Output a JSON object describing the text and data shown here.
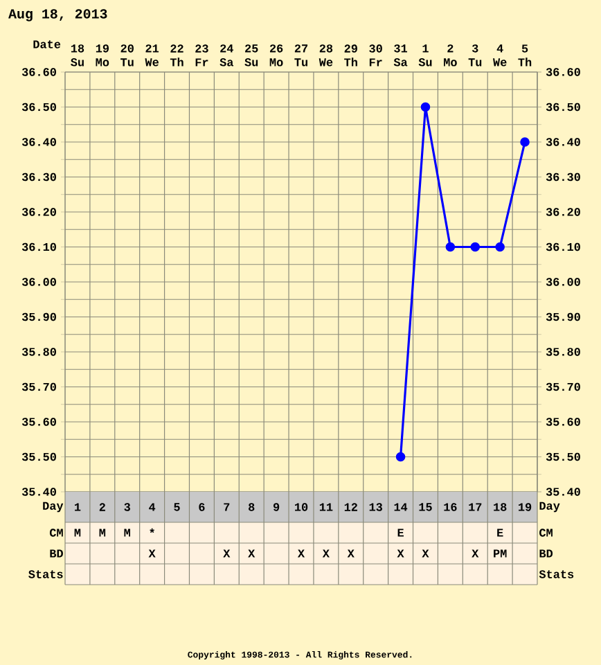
{
  "chart_data": {
    "type": "line",
    "title": "Aug 18, 2013",
    "xlabel": "Date",
    "x2label": "Day",
    "categories": [
      "18 Su",
      "19 Mo",
      "20 Tu",
      "21 We",
      "22 Th",
      "23 Fr",
      "24 Sa",
      "25 Su",
      "26 Mo",
      "27 Tu",
      "28 We",
      "29 Th",
      "30 Fr",
      "31 Sa",
      "1 Su",
      "2 Mo",
      "3 Tu",
      "4 We",
      "5 Th"
    ],
    "values": [
      null,
      null,
      null,
      null,
      null,
      null,
      null,
      null,
      null,
      null,
      null,
      null,
      null,
      35.5,
      36.5,
      36.1,
      36.1,
      36.1,
      36.4
    ],
    "color": "#0000ff",
    "marker": "circle",
    "grid": true,
    "ylim": [
      35.4,
      36.6
    ],
    "yticks": [
      {
        "value": 35.4,
        "label": "35.40"
      },
      {
        "value": 35.45,
        "label": null
      },
      {
        "value": 35.5,
        "label": "35.50"
      },
      {
        "value": 35.55,
        "label": null
      },
      {
        "value": 35.6,
        "label": "35.60"
      },
      {
        "value": 35.65,
        "label": null
      },
      {
        "value": 35.7,
        "label": "35.70"
      },
      {
        "value": 35.75,
        "label": null
      },
      {
        "value": 35.8,
        "label": "35.80"
      },
      {
        "value": 35.85,
        "label": null
      },
      {
        "value": 35.9,
        "label": "35.90"
      },
      {
        "value": 35.95,
        "label": null
      },
      {
        "value": 36.0,
        "label": "36.00"
      },
      {
        "value": 36.05,
        "label": null
      },
      {
        "value": 36.1,
        "label": "36.10"
      },
      {
        "value": 36.15,
        "label": null
      },
      {
        "value": 36.2,
        "label": "36.20"
      },
      {
        "value": 36.25,
        "label": null
      },
      {
        "value": 36.3,
        "label": "36.30"
      },
      {
        "value": 36.35,
        "label": null
      },
      {
        "value": 36.4,
        "label": "36.40"
      },
      {
        "value": 36.45,
        "label": null
      },
      {
        "value": 36.5,
        "label": "36.50"
      },
      {
        "value": 36.55,
        "label": null
      },
      {
        "value": 36.6,
        "label": "36.60"
      }
    ],
    "y2lim": [
      35.4,
      36.6
    ],
    "y2ticks": [
      {
        "value": 35.4,
        "label": "35.40"
      },
      {
        "value": 35.5,
        "label": "35.50"
      },
      {
        "value": 35.6,
        "label": "35.60"
      },
      {
        "value": 35.7,
        "label": "35.70"
      },
      {
        "value": 35.8,
        "label": "35.80"
      },
      {
        "value": 35.9,
        "label": "35.90"
      },
      {
        "value": 36.0,
        "label": "36.00"
      },
      {
        "value": 36.1,
        "label": "36.10"
      },
      {
        "value": 36.2,
        "label": "36.20"
      },
      {
        "value": 36.3,
        "label": "36.30"
      },
      {
        "value": 36.4,
        "label": "36.40"
      },
      {
        "value": 36.5,
        "label": "36.50"
      },
      {
        "value": 36.6,
        "label": "36.60"
      }
    ],
    "x2lim": [
      0.5,
      19.5
    ],
    "x2ticks": [
      1,
      2,
      3,
      4,
      5,
      6,
      7,
      8,
      9,
      10,
      11,
      12,
      13,
      14,
      15,
      16,
      17,
      18,
      19
    ],
    "annotations": [
      "CM",
      "M",
      "M",
      "M",
      "*",
      null,
      null,
      null,
      null,
      null,
      null,
      null,
      null,
      null,
      "E",
      null,
      null,
      null,
      "E",
      null,
      "BD",
      null,
      null,
      null,
      "X",
      null,
      null,
      "X",
      "X",
      null,
      "X",
      "X",
      "X",
      null,
      "X",
      "X",
      null,
      "X",
      "PM",
      null,
      "Stats",
      "Copyright 1998-2013 - All Rights Reserved."
    ]
  }
}
